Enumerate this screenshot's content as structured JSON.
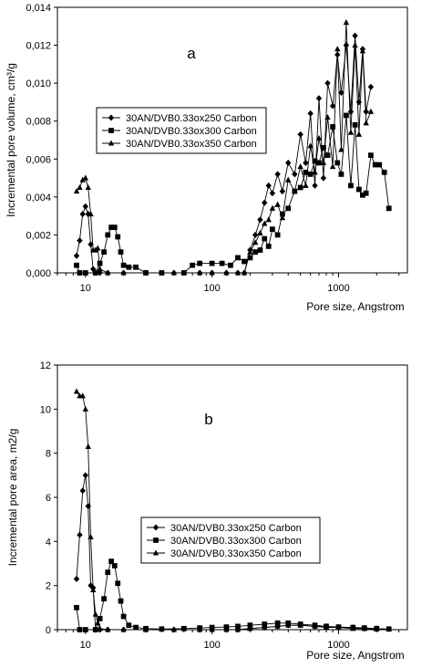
{
  "chart_data": [
    {
      "type": "line",
      "panel_label": "a",
      "xlabel": "Pore size, Angstrom",
      "ylabel": "Incremental pore volume, cm³/g",
      "xscale": "log",
      "xlim": [
        6,
        3500
      ],
      "ylim": [
        0,
        0.014
      ],
      "xticks": [
        10,
        100,
        1000
      ],
      "xtick_labels": [
        "10",
        "100",
        "1000"
      ],
      "yticks": [
        0,
        0.002,
        0.004,
        0.006,
        0.008,
        0.01,
        0.012,
        0.014
      ],
      "ytick_labels": [
        "0,000",
        "0,002",
        "0,004",
        "0,006",
        "0,008",
        "0,010",
        "0,012",
        "0,014"
      ],
      "legend_placement": "center-left",
      "series": [
        {
          "name": "30AN/DVB0.33ox250 Carbon",
          "marker": "diamond",
          "x": [
            8.5,
            9,
            9.5,
            10,
            10.5,
            11,
            11.5,
            12,
            13,
            15,
            20,
            30,
            50,
            80,
            100,
            130,
            160,
            180,
            200,
            220,
            240,
            260,
            280,
            300,
            330,
            360,
            400,
            450,
            500,
            550,
            600,
            650,
            700,
            760,
            820,
            900,
            980,
            1050,
            1150,
            1250,
            1350,
            1450,
            1550,
            1650,
            1800
          ],
          "y": [
            0.0009,
            0.0017,
            0.0031,
            0.0035,
            0.0031,
            0.0015,
            0.0002,
            0.0,
            0.0,
            0.0,
            0.0,
            0.0,
            0.0,
            0.0,
            0.0,
            0.0,
            0.0,
            0.0,
            0.0012,
            0.002,
            0.0028,
            0.0037,
            0.0046,
            0.0042,
            0.0052,
            0.0043,
            0.0058,
            0.0052,
            0.0073,
            0.0058,
            0.0084,
            0.0046,
            0.0092,
            0.005,
            0.01,
            0.0088,
            0.0115,
            0.0095,
            0.012,
            0.0085,
            0.0125,
            0.009,
            0.0118,
            0.0085,
            0.0098
          ]
        },
        {
          "name": "30AN/DVB0.33ox300 Carbon",
          "marker": "square",
          "x": [
            8.5,
            9,
            10,
            12,
            13,
            14,
            15,
            16,
            17,
            18,
            19,
            20,
            22,
            25,
            30,
            40,
            60,
            70,
            80,
            100,
            120,
            140,
            160,
            180,
            200,
            220,
            240,
            260,
            280,
            300,
            330,
            360,
            400,
            450,
            500,
            550,
            600,
            650,
            700,
            760,
            820,
            900,
            980,
            1050,
            1150,
            1250,
            1350,
            1450,
            1550,
            1650,
            1800,
            1950,
            2100,
            2300,
            2500
          ],
          "y": [
            0.0004,
            0.0,
            0.0,
            0.0,
            0.0005,
            0.0011,
            0.002,
            0.0024,
            0.0024,
            0.0019,
            0.0011,
            0.0004,
            0.0003,
            0.0003,
            0.0,
            0.0,
            0.0,
            0.0004,
            0.0005,
            0.0005,
            0.0005,
            0.0004,
            0.0008,
            0.0006,
            0.0008,
            0.0011,
            0.0012,
            0.0018,
            0.0014,
            0.0023,
            0.002,
            0.0031,
            0.0034,
            0.0043,
            0.0045,
            0.0053,
            0.0052,
            0.0059,
            0.0058,
            0.0066,
            0.0062,
            0.0077,
            0.0058,
            0.0052,
            0.0083,
            0.0046,
            0.0078,
            0.0044,
            0.0041,
            0.0042,
            0.0062,
            0.0057,
            0.0057,
            0.0053,
            0.0034
          ]
        },
        {
          "name": "30AN/DVB0.33ox350 Carbon",
          "marker": "triangle",
          "x": [
            8.5,
            9,
            9.5,
            10,
            10.5,
            11,
            11.5,
            12,
            12.5,
            13,
            15,
            20,
            30,
            50,
            80,
            100,
            130,
            160,
            180,
            200,
            220,
            240,
            260,
            280,
            300,
            330,
            360,
            400,
            450,
            500,
            550,
            600,
            650,
            700,
            760,
            820,
            900,
            980,
            1050,
            1150,
            1250,
            1350,
            1450,
            1550,
            1650,
            1800
          ],
          "y": [
            0.0043,
            0.0045,
            0.0049,
            0.005,
            0.0045,
            0.0031,
            0.0012,
            0.0012,
            0.0013,
            0.0002,
            0.0,
            0.0,
            0.0,
            0.0,
            0.0,
            0.0,
            0.0,
            0.0,
            0.0,
            0.0011,
            0.0016,
            0.0021,
            0.0026,
            0.0028,
            0.0034,
            0.0036,
            0.0029,
            0.0049,
            0.0043,
            0.0056,
            0.0046,
            0.0067,
            0.0053,
            0.0071,
            0.0058,
            0.0082,
            0.0056,
            0.0118,
            0.0065,
            0.0132,
            0.0074,
            0.012,
            0.0073,
            0.0117,
            0.0079,
            0.0085
          ]
        }
      ]
    },
    {
      "type": "line",
      "panel_label": "b",
      "xlabel": "Pore size, Angstrom",
      "ylabel": "Incremental pore area, m2/g",
      "xscale": "log",
      "xlim": [
        6,
        3500
      ],
      "ylim": [
        0,
        12
      ],
      "xticks": [
        10,
        100,
        1000
      ],
      "xtick_labels": [
        "10",
        "100",
        "1000"
      ],
      "yticks": [
        0,
        2,
        4,
        6,
        8,
        10,
        12
      ],
      "ytick_labels": [
        "0",
        "2",
        "4",
        "6",
        "8",
        "10",
        "12"
      ],
      "legend_placement": "center-right",
      "series": [
        {
          "name": "30AN/DVB0.33ox250 Carbon",
          "marker": "diamond",
          "x": [
            8.5,
            9,
            9.5,
            10,
            10.5,
            11,
            11.5,
            12,
            13,
            15,
            20,
            30,
            50,
            80,
            100,
            130,
            160,
            200,
            260,
            330,
            400,
            500,
            650,
            800,
            1000,
            1300,
            1600,
            2000
          ],
          "y": [
            2.3,
            4.3,
            6.3,
            7.0,
            5.6,
            2.0,
            1.9,
            0.0,
            0.0,
            0.0,
            0.0,
            0.0,
            0.0,
            0.0,
            0.0,
            0.0,
            0.0,
            0.05,
            0.1,
            0.15,
            0.2,
            0.2,
            0.15,
            0.15,
            0.1,
            0.1,
            0.05,
            0.05
          ]
        },
        {
          "name": "30AN/DVB0.33ox300 Carbon",
          "marker": "square",
          "x": [
            8.5,
            9,
            10,
            12,
            13,
            14,
            15,
            16,
            17,
            18,
            19,
            20,
            22,
            25,
            30,
            40,
            60,
            80,
            100,
            130,
            160,
            200,
            260,
            330,
            400,
            500,
            650,
            800,
            1000,
            1300,
            1600,
            2000,
            2500
          ],
          "y": [
            1.0,
            0.0,
            0.0,
            0.0,
            0.5,
            1.4,
            2.6,
            3.1,
            2.9,
            2.1,
            1.3,
            0.6,
            0.2,
            0.1,
            0.05,
            0.03,
            0.05,
            0.08,
            0.1,
            0.12,
            0.15,
            0.2,
            0.25,
            0.3,
            0.3,
            0.25,
            0.2,
            0.15,
            0.12,
            0.1,
            0.08,
            0.05,
            0.03
          ]
        },
        {
          "name": "30AN/DVB0.33ox350 Carbon",
          "marker": "triangle",
          "x": [
            8.5,
            9,
            9.5,
            10,
            10.5,
            11,
            11.5,
            12,
            12.5,
            13,
            15,
            20,
            30,
            50,
            80,
            100,
            130,
            160,
            200,
            260,
            330,
            400,
            500,
            650,
            800,
            1000,
            1300,
            1600,
            2000
          ],
          "y": [
            10.8,
            10.6,
            10.6,
            10.0,
            8.3,
            4.2,
            1.8,
            0.7,
            0.3,
            0.05,
            0.0,
            0.0,
            0.0,
            0.0,
            0.0,
            0.0,
            0.0,
            0.0,
            0.05,
            0.1,
            0.15,
            0.2,
            0.2,
            0.15,
            0.1,
            0.1,
            0.05,
            0.05,
            0.03
          ]
        }
      ]
    }
  ]
}
